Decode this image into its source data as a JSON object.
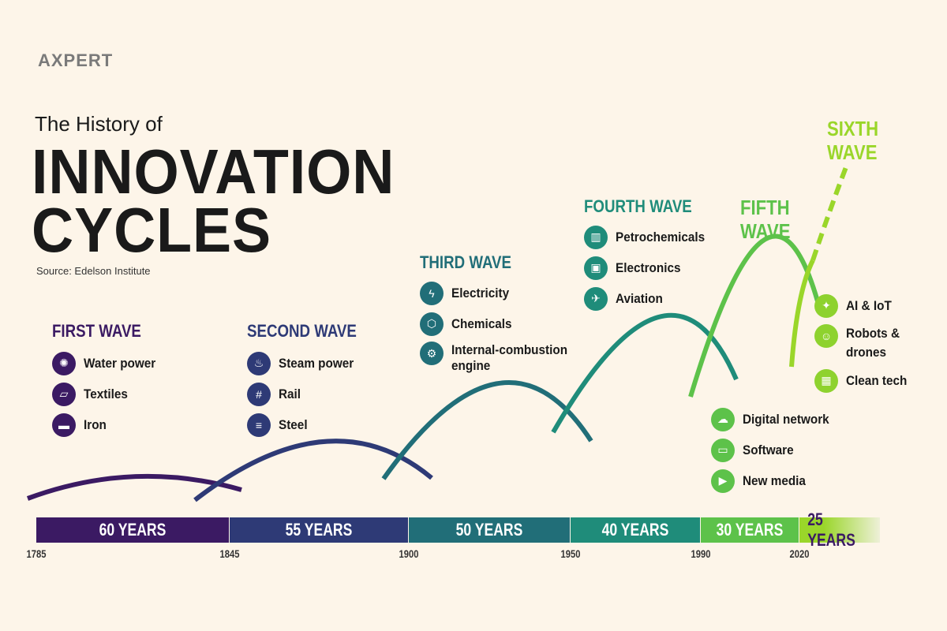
{
  "brand": "AXPERT",
  "title": {
    "pre": "The History of",
    "line1": "INNOVATION",
    "line2": "CYCLES",
    "source": "Source: Edelson Institute"
  },
  "waves": [
    {
      "title": "FIRST WAVE",
      "color": "#3b1a63",
      "items": [
        {
          "label": "Water power",
          "icon": "water-wheel-icon"
        },
        {
          "label": "Textiles",
          "icon": "textile-icon"
        },
        {
          "label": "Iron",
          "icon": "iron-ingot-icon"
        }
      ]
    },
    {
      "title": "SECOND WAVE",
      "color": "#2e3a76",
      "items": [
        {
          "label": "Steam power",
          "icon": "steam-engine-icon"
        },
        {
          "label": "Rail",
          "icon": "rail-icon"
        },
        {
          "label": "Steel",
          "icon": "steel-beam-icon"
        }
      ]
    },
    {
      "title": "THIRD WAVE",
      "color": "#216e78",
      "items": [
        {
          "label": "Electricity",
          "icon": "lightning-icon"
        },
        {
          "label": "Chemicals",
          "icon": "molecule-icon"
        },
        {
          "label": "Internal-combustion engine",
          "icon": "engine-icon"
        }
      ]
    },
    {
      "title": "FOURTH WAVE",
      "color": "#1f8c7a",
      "items": [
        {
          "label": "Petrochemicals",
          "icon": "refinery-icon"
        },
        {
          "label": "Electronics",
          "icon": "chip-icon"
        },
        {
          "label": "Aviation",
          "icon": "airplane-icon"
        }
      ]
    },
    {
      "title": "FIFTH WAVE",
      "color": "#5dc24a",
      "items": [
        {
          "label": "Digital network",
          "icon": "cloud-icon"
        },
        {
          "label": "Software",
          "icon": "laptop-icon"
        },
        {
          "label": "New media",
          "icon": "video-monitor-icon"
        }
      ]
    },
    {
      "title": "SIXTH WAVE",
      "color": "#9ad62a",
      "items": [
        {
          "label": "AI & IoT",
          "icon": "ai-brain-icon"
        },
        {
          "label": "Robots & drones",
          "icon": "robot-icon"
        },
        {
          "label": "Clean tech",
          "icon": "solar-panel-icon"
        }
      ]
    }
  ],
  "timeline": {
    "durations": [
      "60 YEARS",
      "55 YEARS",
      "50 YEARS",
      "40 YEARS",
      "30 YEARS",
      "25 YEARS"
    ],
    "years": [
      "1785",
      "1845",
      "1900",
      "1950",
      "1990",
      "2020"
    ]
  }
}
